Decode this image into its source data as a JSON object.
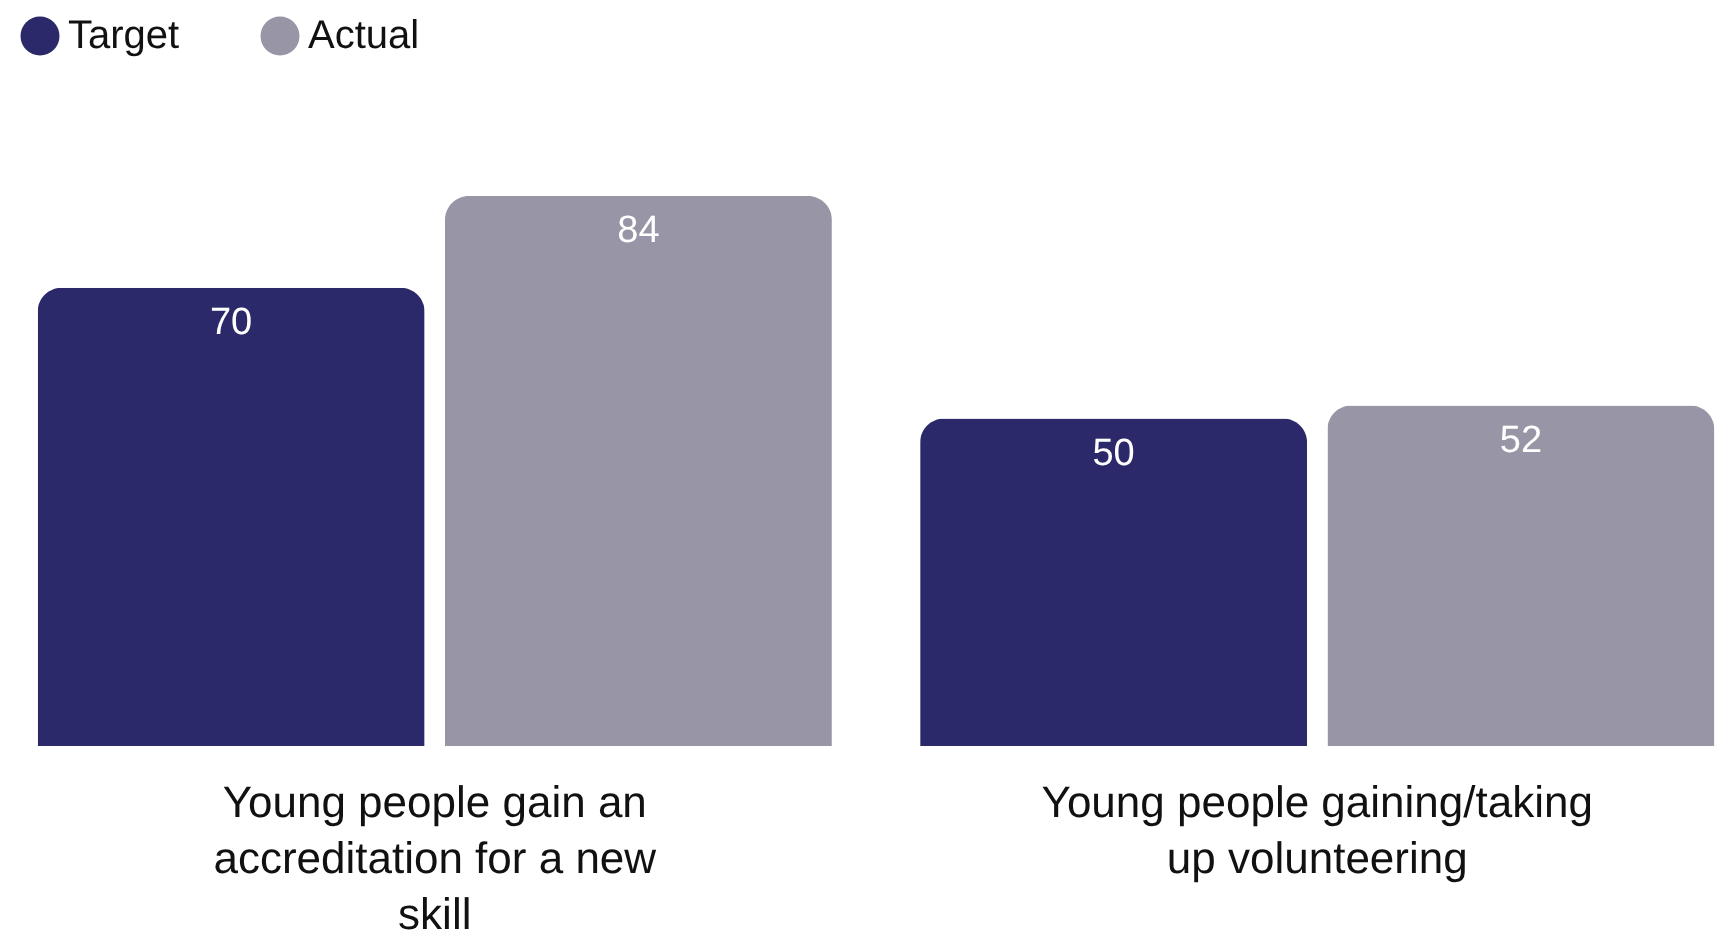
{
  "chart_data": {
    "type": "bar",
    "categories": [
      "Young people gain an accreditation for a new skill",
      "Young people gaining/taking up volunteering"
    ],
    "series": [
      {
        "name": "Target",
        "color": "#2b2969",
        "values": [
          70,
          50
        ]
      },
      {
        "name": "Actual",
        "color": "#9896a6",
        "values": [
          84,
          52
        ]
      }
    ],
    "data_labels": true,
    "legend": "top",
    "grid": false
  }
}
